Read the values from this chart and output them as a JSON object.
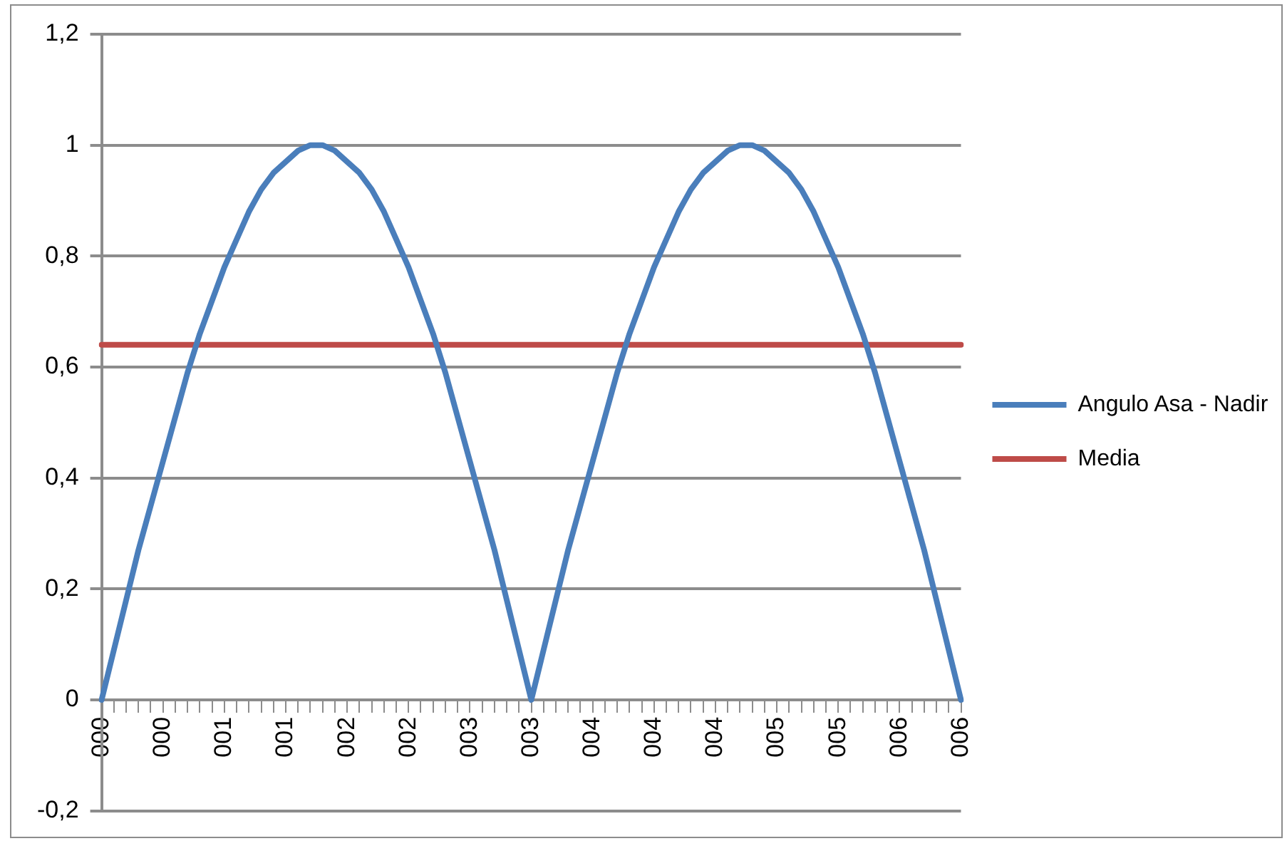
{
  "chart_data": {
    "type": "line",
    "categories": [
      "000",
      null,
      null,
      null,
      null,
      "000",
      null,
      null,
      null,
      null,
      "001",
      null,
      null,
      null,
      null,
      "001",
      null,
      null,
      null,
      null,
      "002",
      null,
      null,
      null,
      null,
      "002",
      null,
      null,
      null,
      null,
      "003",
      null,
      null,
      null,
      null,
      "003",
      null,
      null,
      null,
      null,
      "004",
      null,
      null,
      null,
      null,
      "004",
      null,
      null,
      null,
      null,
      "004",
      null,
      null,
      null,
      null,
      "005",
      null,
      null,
      null,
      null,
      "005",
      null,
      null,
      null,
      null,
      "006",
      null,
      null,
      null,
      null,
      "006"
    ],
    "series": [
      {
        "name": "Angulo Asa - Nadir",
        "color": "#4a7ebb",
        "values": [
          0,
          0.09,
          0.18,
          0.27,
          0.35,
          0.43,
          0.51,
          0.59,
          0.66,
          0.72,
          0.78,
          0.83,
          0.88,
          0.92,
          0.95,
          0.97,
          0.99,
          1,
          1,
          0.99,
          0.97,
          0.95,
          0.92,
          0.88,
          0.83,
          0.78,
          0.72,
          0.66,
          0.59,
          0.51,
          0.43,
          0.35,
          0.27,
          0.18,
          0.09,
          0,
          0.09,
          0.18,
          0.27,
          0.35,
          0.43,
          0.51,
          0.59,
          0.66,
          0.72,
          0.78,
          0.83,
          0.88,
          0.92,
          0.95,
          0.97,
          0.99,
          1,
          1,
          0.99,
          0.97,
          0.95,
          0.92,
          0.88,
          0.83,
          0.78,
          0.72,
          0.66,
          0.59,
          0.51,
          0.43,
          0.35,
          0.27,
          0.18,
          0.09,
          0
        ]
      },
      {
        "name": "Media",
        "color": "#be4b48",
        "values": [
          0.64,
          0.64,
          0.64,
          0.64,
          0.64,
          0.64,
          0.64,
          0.64,
          0.64,
          0.64,
          0.64,
          0.64,
          0.64,
          0.64,
          0.64,
          0.64,
          0.64,
          0.64,
          0.64,
          0.64,
          0.64,
          0.64,
          0.64,
          0.64,
          0.64,
          0.64,
          0.64,
          0.64,
          0.64,
          0.64,
          0.64,
          0.64,
          0.64,
          0.64,
          0.64,
          0.64,
          0.64,
          0.64,
          0.64,
          0.64,
          0.64,
          0.64,
          0.64,
          0.64,
          0.64,
          0.64,
          0.64,
          0.64,
          0.64,
          0.64,
          0.64,
          0.64,
          0.64,
          0.64,
          0.64,
          0.64,
          0.64,
          0.64,
          0.64,
          0.64,
          0.64,
          0.64,
          0.64,
          0.64,
          0.64,
          0.64,
          0.64,
          0.64,
          0.64,
          0.64,
          0.64
        ]
      }
    ],
    "ylim": [
      -0.2,
      1.2
    ],
    "yticks": [
      {
        "value": -0.2,
        "label": "-0,2"
      },
      0,
      {
        "value": 0.2,
        "label": "0,2"
      },
      {
        "value": 0.4,
        "label": "0,4"
      },
      {
        "value": 0.6,
        "label": "0,6"
      },
      {
        "value": 0.8,
        "label": "0,8"
      },
      1,
      {
        "value": 1.2,
        "label": "1,2"
      }
    ],
    "grid": "y",
    "legend": "right",
    "marker": "none",
    "line_style": "solid"
  }
}
